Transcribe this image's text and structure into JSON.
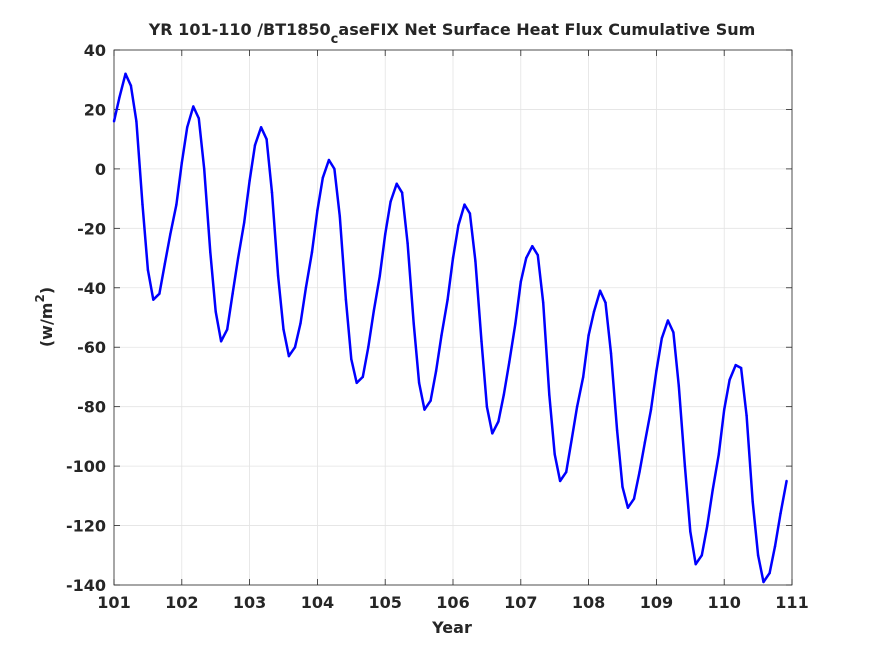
{
  "chart_data": {
    "type": "line",
    "title_parts": [
      "YR 101-110 /BT1850",
      "c",
      "aseFIX Net Surface Heat Flux  Cumulative Sum"
    ],
    "xlabel": "Year",
    "ylabel_parts": [
      "(w/m",
      "2",
      ")"
    ],
    "xlim": [
      101,
      111
    ],
    "ylim": [
      -140,
      40
    ],
    "xticks": [
      101,
      102,
      103,
      104,
      105,
      106,
      107,
      108,
      109,
      110,
      111
    ],
    "yticks": [
      -140,
      -120,
      -100,
      -80,
      -60,
      -40,
      -20,
      0,
      20,
      40
    ],
    "grid": true,
    "line_color": "#0000ff",
    "series": [
      {
        "x": [
          101.0,
          101.08,
          101.17,
          101.25,
          101.33,
          101.42,
          101.5,
          101.58,
          101.67,
          101.75,
          101.83,
          101.92,
          102.0,
          102.08,
          102.17,
          102.25,
          102.33,
          102.42,
          102.5,
          102.58,
          102.67,
          102.75,
          102.83,
          102.92,
          103.0,
          103.08,
          103.17,
          103.25,
          103.33,
          103.42,
          103.5,
          103.58,
          103.67,
          103.75,
          103.83,
          103.92,
          104.0,
          104.08,
          104.17,
          104.25,
          104.33,
          104.42,
          104.5,
          104.58,
          104.67,
          104.75,
          104.83,
          104.92,
          105.0,
          105.08,
          105.17,
          105.25,
          105.33,
          105.42,
          105.5,
          105.58,
          105.67,
          105.75,
          105.83,
          105.92,
          106.0,
          106.08,
          106.17,
          106.25,
          106.33,
          106.42,
          106.5,
          106.58,
          106.67,
          106.75,
          106.83,
          106.92,
          107.0,
          107.08,
          107.17,
          107.25,
          107.33,
          107.42,
          107.5,
          107.58,
          107.67,
          107.75,
          107.83,
          107.92,
          108.0,
          108.08,
          108.17,
          108.25,
          108.33,
          108.42,
          108.5,
          108.58,
          108.67,
          108.75,
          108.83,
          108.92,
          109.0,
          109.08,
          109.17,
          109.25,
          109.33,
          109.42,
          109.5,
          109.58,
          109.67,
          109.75,
          109.83,
          109.92,
          110.0,
          110.08,
          110.17,
          110.25,
          110.33,
          110.42,
          110.5,
          110.58,
          110.67,
          110.75,
          110.83,
          110.92
        ],
        "y": [
          16,
          24,
          32,
          28,
          16,
          -12,
          -34,
          -44,
          -42,
          -32,
          -22,
          -12,
          2,
          14,
          21,
          17,
          0,
          -28,
          -48,
          -58,
          -54,
          -42,
          -30,
          -18,
          -4,
          8,
          14,
          10,
          -8,
          -36,
          -54,
          -63,
          -60,
          -52,
          -40,
          -28,
          -14,
          -3,
          3,
          0,
          -16,
          -44,
          -64,
          -72,
          -70,
          -60,
          -48,
          -36,
          -22,
          -11,
          -5,
          -8,
          -25,
          -52,
          -72,
          -81,
          -78,
          -68,
          -56,
          -44,
          -30,
          -19,
          -12,
          -15,
          -31,
          -58,
          -80,
          -89,
          -85,
          -76,
          -65,
          -52,
          -38,
          -30,
          -26,
          -29,
          -45,
          -76,
          -96,
          -105,
          -102,
          -91,
          -80,
          -70,
          -56,
          -48,
          -41,
          -45,
          -62,
          -88,
          -107,
          -114,
          -111,
          -102,
          -92,
          -81,
          -68,
          -57,
          -51,
          -55,
          -73,
          -100,
          -122,
          -133,
          -130,
          -120,
          -108,
          -96,
          -81,
          -71,
          -66,
          -67,
          -83,
          -112,
          -130,
          -139,
          -136,
          -127,
          -116,
          -105
        ]
      }
    ]
  }
}
